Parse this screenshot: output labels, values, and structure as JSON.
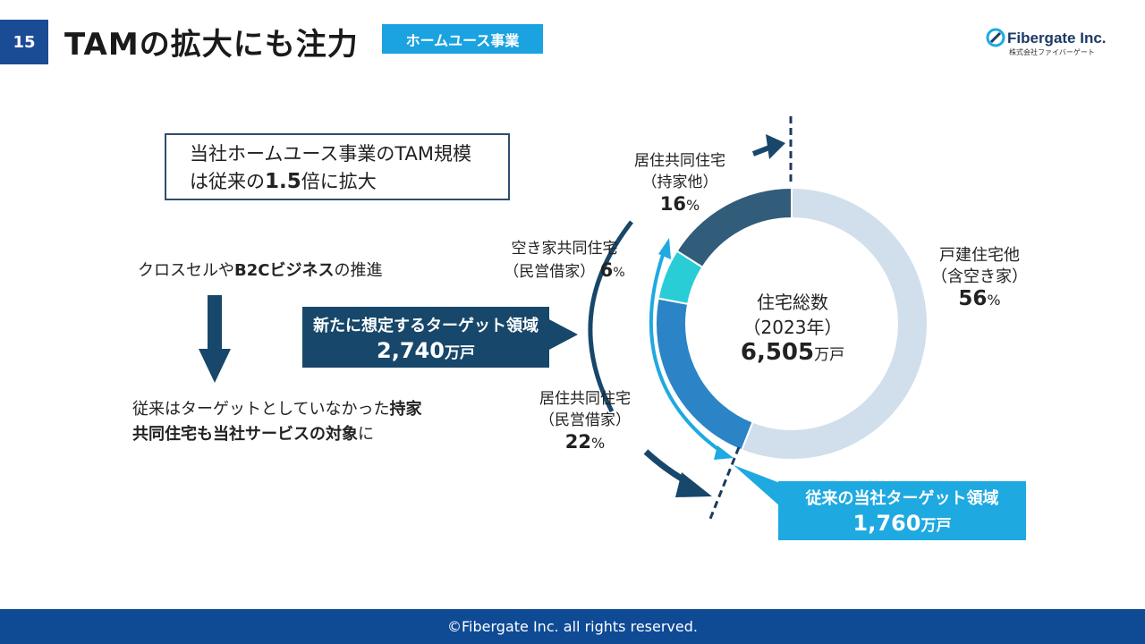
{
  "header": {
    "page_number": "15",
    "title": "TAMの拡大にも注力",
    "section_tag": "ホームユース事業",
    "logo_name": "Fibergate Inc.",
    "logo_sub": "株式会社ファイバーゲート"
  },
  "left": {
    "callout_line1": "当社ホームユース事業のTAM規模",
    "callout_line2_pre": "は従来の",
    "callout_line2_bold": "1.5",
    "callout_line2_post": "倍に拡大",
    "cross_pre": "クロスセルや",
    "cross_bold1": "B2Cビジネス",
    "cross_post": "の推進",
    "bottom_line1_pre": "従来はターゲットとしていなかった",
    "bottom_line1_bold": "持家",
    "bottom_line2_bold": "共同住宅も当社サービスの対象",
    "bottom_line2_post": "に"
  },
  "new_target": {
    "label": "新たに想定するターゲット領域",
    "value": "2,740",
    "unit": "万戸"
  },
  "old_target": {
    "label": "従来の当社ターゲット領域",
    "value": "1,760",
    "unit": "万戸"
  },
  "center": {
    "line1": "住宅総数",
    "line2": "（2023年）",
    "value": "6,505",
    "unit": "万戸"
  },
  "slice_labels": {
    "owned_l1": "居住共同住宅",
    "owned_l2": "（持家他）",
    "owned_pct": "16",
    "vacant_l1": "空き家共同住宅",
    "vacant_l2": "（民営借家）",
    "vacant_pct": "6",
    "rental_l1": "居住共同住宅",
    "rental_l2": "（民営借家）",
    "rental_pct": "22",
    "detached_l1": "戸建住宅他",
    "detached_l2": "（含空き家）",
    "detached_pct": "56",
    "pct_sign": "%"
  },
  "chart_data": {
    "type": "pie",
    "variant": "donut",
    "total_label": "住宅総数（2023年） 6,505万戸",
    "slices": [
      {
        "name": "戸建住宅他（含空き家）",
        "value": 56,
        "color": "#d0dfeb"
      },
      {
        "name": "居住共同住宅（民営借家）",
        "value": 22,
        "color": "#2b84c6"
      },
      {
        "name": "空き家共同住宅（民営借家）",
        "value": 6,
        "color": "#29cdd6"
      },
      {
        "name": "居住共同住宅（持家他）",
        "value": 16,
        "color": "#315c7a"
      }
    ],
    "start": "top, clockwise"
  },
  "footer": {
    "copyright": "©Fibergate Inc. all rights reserved."
  },
  "colors": {
    "brand_navy": "#1a4b95",
    "accent_blue": "#1ea9e1",
    "dark_box": "#17476a"
  }
}
